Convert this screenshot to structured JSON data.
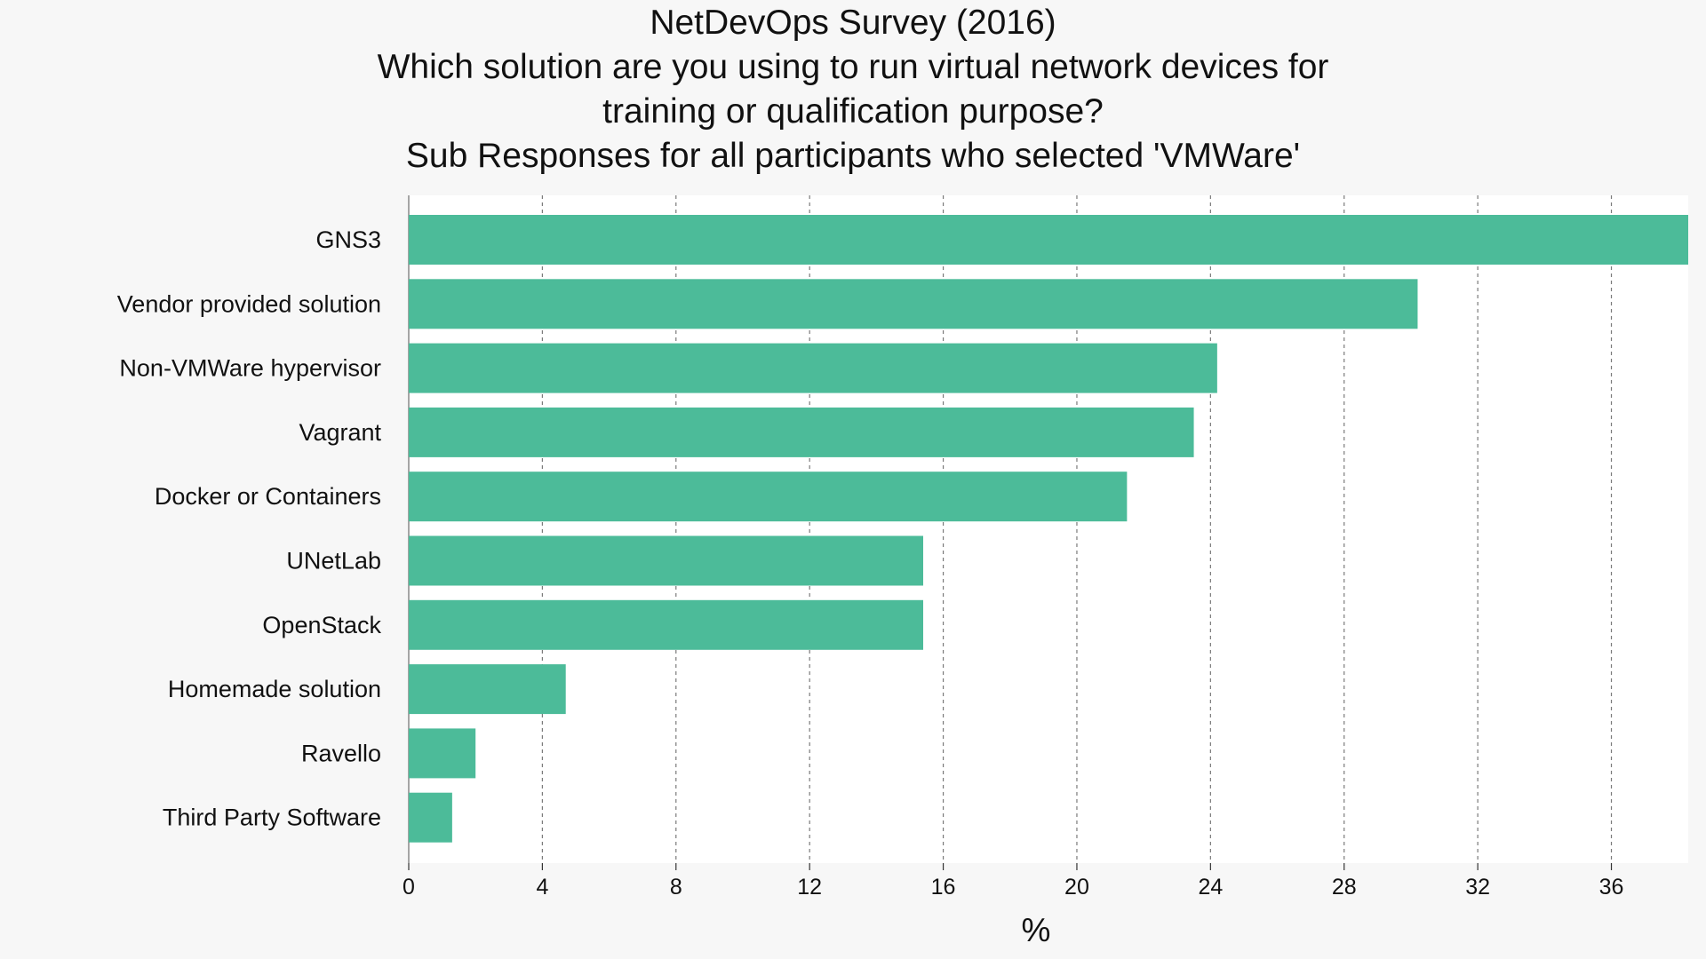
{
  "chart_data": {
    "type": "bar",
    "orientation": "horizontal",
    "title": [
      "NetDevOps Survey (2016)",
      "Which solution are you using to run virtual network devices for",
      "training or qualification purpose?",
      "Sub Responses for all participants who selected 'VMWare'"
    ],
    "xlabel": "%",
    "ylabel": "",
    "categories": [
      "GNS3",
      "Vendor provided solution",
      "Non-VMWare hypervisor",
      "Vagrant",
      "Docker or Containers",
      "UNetLab",
      "OpenStack",
      "Homemade solution",
      "Ravello",
      "Third Party Software"
    ],
    "values": [
      38.3,
      30.2,
      24.2,
      23.5,
      21.5,
      15.4,
      15.4,
      4.7,
      2.0,
      1.3
    ],
    "xlim": [
      0,
      38.3
    ],
    "xticks": [
      0,
      4,
      8,
      12,
      16,
      20,
      24,
      28,
      32,
      36
    ],
    "grid": "vertical-dashed",
    "bar_color": "#4cbb99",
    "plot_background": "#ffffff",
    "figure_background": "#f7f7f7"
  }
}
